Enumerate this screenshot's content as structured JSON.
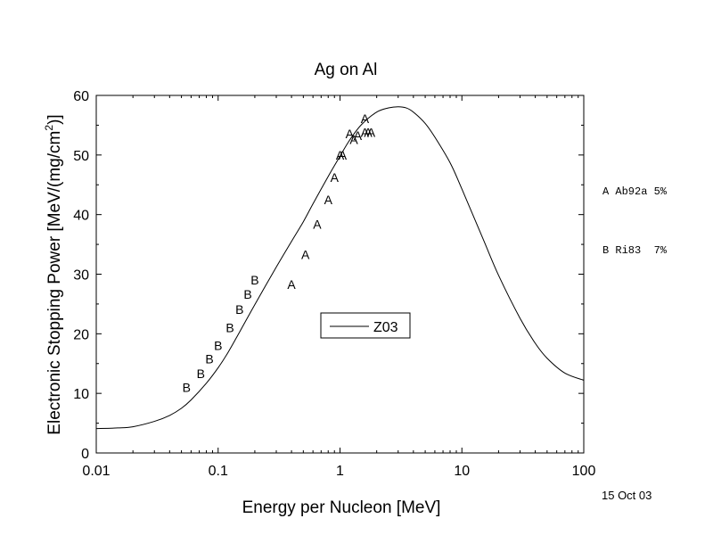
{
  "chart_data": {
    "type": "scatter",
    "title": "Ag on Al",
    "xlabel": "Energy per Nucleon [MeV]",
    "ylabel_main": "Electronic Stopping Power [MeV/(mg/cm",
    "ylabel_sup": "2",
    "ylabel_end": ")]",
    "xscale": "log",
    "xlim": [
      0.01,
      100
    ],
    "ylim": [
      0,
      60
    ],
    "grid": false,
    "x_ticks": [
      0.01,
      0.1,
      1,
      10,
      100
    ],
    "x_tick_labels": [
      "0.01",
      "0.1",
      "1",
      "10",
      "100"
    ],
    "y_ticks": [
      0,
      10,
      20,
      30,
      40,
      50,
      60
    ],
    "y_tick_labels": [
      "0",
      "10",
      "20",
      "30",
      "40",
      "50",
      "60"
    ],
    "legend_location": "center",
    "curve": {
      "name": "Z03",
      "x": [
        0.01,
        0.015,
        0.02,
        0.03,
        0.04,
        0.05,
        0.06,
        0.08,
        0.1,
        0.12,
        0.15,
        0.2,
        0.3,
        0.4,
        0.5,
        0.6,
        0.8,
        1.0,
        1.2,
        1.5,
        2.0,
        2.5,
        3.0,
        3.5,
        4.0,
        5.0,
        6.0,
        8.0,
        10,
        15,
        20,
        30,
        40,
        50,
        70,
        100
      ],
      "y": [
        4.1,
        4.2,
        4.4,
        5.3,
        6.3,
        7.5,
        8.9,
        11.7,
        14.3,
        16.8,
        20.3,
        24.9,
        31.2,
        35.5,
        38.8,
        41.8,
        46.4,
        49.8,
        52.5,
        55.1,
        57.2,
        57.9,
        58.1,
        57.9,
        57.2,
        55.3,
        53.0,
        48.7,
        44.3,
        35.8,
        29.8,
        22.6,
        18.4,
        15.9,
        13.4,
        12.2
      ]
    },
    "series": [
      {
        "marker": "A",
        "x": [
          0.4,
          0.52,
          0.65,
          0.8,
          0.9,
          1.0,
          1.05,
          1.2,
          1.3,
          1.4,
          1.6,
          1.7,
          1.8,
          1.6
        ],
        "y": [
          28.3,
          33.3,
          38.4,
          42.5,
          46.2,
          50.0,
          50.0,
          53.6,
          52.6,
          53.3,
          53.8,
          53.8,
          53.8,
          56.1
        ]
      },
      {
        "marker": "B",
        "x": [
          0.055,
          0.072,
          0.085,
          0.1,
          0.125,
          0.15,
          0.175,
          0.2
        ],
        "y": [
          11.0,
          13.3,
          15.8,
          18.0,
          21.0,
          24.1,
          26.6,
          29.0
        ]
      }
    ]
  },
  "legend": {
    "label": "Z03"
  },
  "side_legend": {
    "entry_a": "A Ab92a 5%",
    "entry_b": "B Ri83  7%"
  },
  "date_text": "15 Oct 03"
}
